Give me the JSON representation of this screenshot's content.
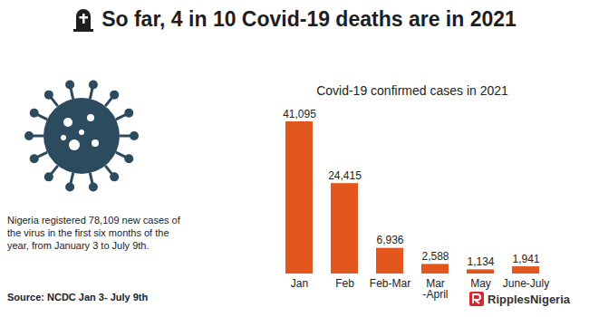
{
  "chart_data": {
    "type": "bar",
    "title": "So far, 4 in 10 Covid-19 deaths are in 2021",
    "subtitle": "Covid-19 confirmed cases in 2021",
    "annotation": "Nigeria registered 78,109 new cases of the virus in the first six months of the year, from January 3 to July 9th.",
    "source": "Source: NCDC Jan 3- July 9th",
    "logo": "RipplesNigeria",
    "categories": [
      "Jan",
      "Feb",
      "Feb-Mar",
      "Mar\n-April",
      "May",
      "June-July"
    ],
    "values": [
      41095,
      24415,
      6936,
      2588,
      1134,
      1941
    ],
    "value_labels": [
      "41,095",
      "24,415",
      "6,936",
      "2,588",
      "1,134",
      "1,941"
    ],
    "color": "#e2571e",
    "data_labels": true,
    "tick_labels": "x"
  }
}
